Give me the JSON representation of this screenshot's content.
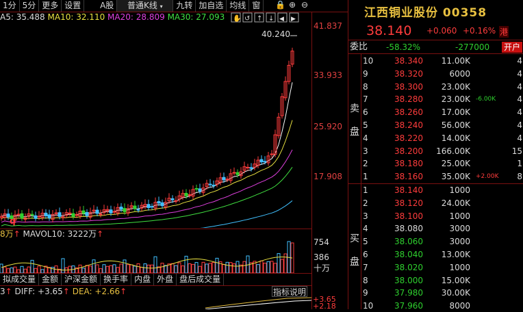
{
  "toolbar": {
    "items": [
      "1分",
      "5分",
      "更多",
      "设置",
      "A股",
      "普通K线",
      "九转",
      "加自选",
      "均线",
      "窗"
    ]
  },
  "ma": {
    "ma5": "A5: 35.488",
    "ma10": "MA10: 32.110",
    "ma20": "MA20: 28.809",
    "ma30": "MA30: 27.093"
  },
  "price_axis": [
    "41.837",
    "33.933",
    "25.920",
    "17.908"
  ],
  "high_label": "40.240",
  "low_marker": "q",
  "volume": {
    "header_prefix": "8万",
    "header_main": "MAVOL10: 3222万",
    "axis": [
      "754",
      "386",
      "十万"
    ]
  },
  "indicator_tabs": [
    "拟成交量",
    "金额",
    "沪深金额",
    "换手率",
    "内盘",
    "外盘",
    "盘后成交量"
  ],
  "macd": {
    "prefix": "3",
    "diff": "DIFF: +3.65",
    "dea": "DEA: +2.66",
    "button": "指标说明",
    "axis": [
      "+3.65",
      "+2.18"
    ]
  },
  "stock": {
    "name": "江西铜业股份",
    "code": "00358",
    "price": "38.140",
    "change": "+0.060",
    "change_pct": "+0.16%",
    "tag": "港"
  },
  "ratio": {
    "label": "委比",
    "pct": "-58.32%",
    "diff": "-277000",
    "open_btn": "开户"
  },
  "sell_label": [
    "卖",
    "盘"
  ],
  "buy_label": [
    "买",
    "盘"
  ],
  "asks": [
    {
      "lvl": "10",
      "price": "38.340",
      "vol": "11.00K",
      "chg": "",
      "extra": "4"
    },
    {
      "lvl": "9",
      "price": "38.320",
      "vol": "6000",
      "chg": "",
      "extra": "4"
    },
    {
      "lvl": "8",
      "price": "38.300",
      "vol": "23.00K",
      "chg": "",
      "extra": "4"
    },
    {
      "lvl": "7",
      "price": "38.280",
      "vol": "23.00K",
      "chg": "-6.00K",
      "extra": "4"
    },
    {
      "lvl": "6",
      "price": "38.260",
      "vol": "17.00K",
      "chg": "",
      "extra": "4"
    },
    {
      "lvl": "5",
      "price": "38.240",
      "vol": "56.00K",
      "chg": "",
      "extra": "4"
    },
    {
      "lvl": "4",
      "price": "38.220",
      "vol": "14.00K",
      "chg": "",
      "extra": "4"
    },
    {
      "lvl": "3",
      "price": "38.200",
      "vol": "166.00K",
      "chg": "",
      "extra": "15"
    },
    {
      "lvl": "2",
      "price": "38.180",
      "vol": "25.00K",
      "chg": "",
      "extra": "1"
    },
    {
      "lvl": "1",
      "price": "38.160",
      "vol": "35.00K",
      "chg": "+2.00K",
      "extra": "8"
    }
  ],
  "bids": [
    {
      "lvl": "1",
      "price": "38.140",
      "vol": "1000",
      "color": "red"
    },
    {
      "lvl": "2",
      "price": "38.120",
      "vol": "24.00K",
      "color": "red"
    },
    {
      "lvl": "3",
      "price": "38.100",
      "vol": "1000",
      "color": "red"
    },
    {
      "lvl": "4",
      "price": "38.080",
      "vol": "3000",
      "color": "white"
    },
    {
      "lvl": "5",
      "price": "38.060",
      "vol": "3000",
      "color": "green"
    },
    {
      "lvl": "6",
      "price": "38.040",
      "vol": "13.00K",
      "color": "green"
    },
    {
      "lvl": "7",
      "price": "38.020",
      "vol": "1000",
      "color": "green"
    },
    {
      "lvl": "8",
      "price": "38.000",
      "vol": "15.00K",
      "color": "green"
    },
    {
      "lvl": "9",
      "price": "37.980",
      "vol": "30.00K",
      "color": "green"
    },
    {
      "lvl": "10",
      "price": "37.960",
      "vol": "8000",
      "color": "green"
    }
  ],
  "colors": {
    "up": "#ff3c3c",
    "down": "#2ed02e",
    "ma5": "#ffffff",
    "ma10": "#e8e040",
    "ma20": "#e040e0",
    "ma30": "#40e040",
    "ma60": "#40c0ff",
    "frame": "#7a1010"
  }
}
